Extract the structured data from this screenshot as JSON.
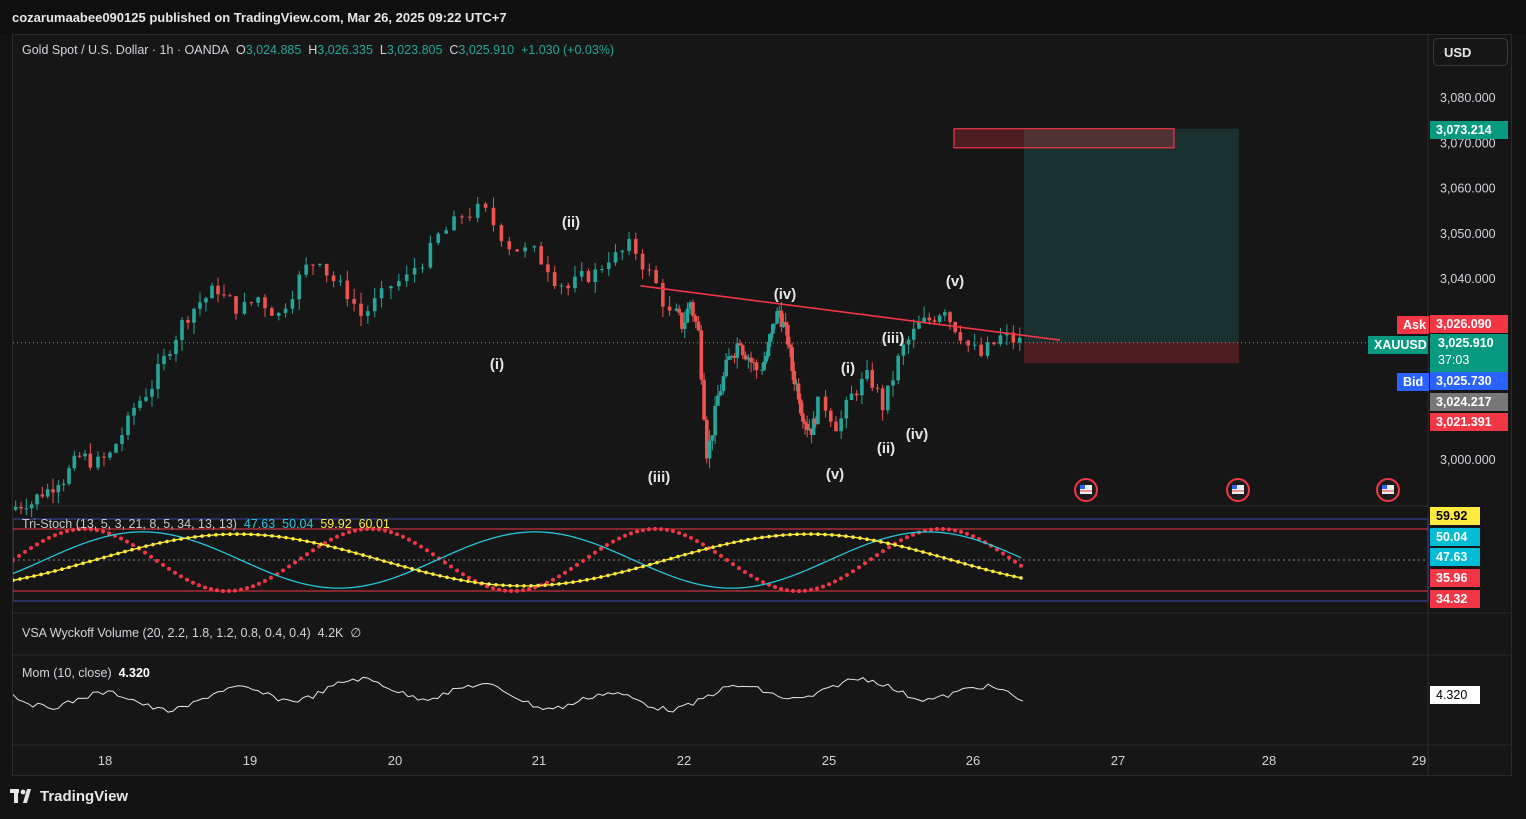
{
  "publisher": "cozarumaabee090125 published on TradingView.com, Mar 26, 2025 09:22 UTC+7",
  "currency_button": "USD",
  "footer_brand": "TradingView",
  "header": {
    "symbol": "Gold Spot / U.S. Dollar · 1h · OANDA",
    "open_label": "O",
    "open": "3,024.885",
    "high_label": "H",
    "high": "3,026.335",
    "low_label": "L",
    "low": "3,023.805",
    "close_label": "C",
    "close": "3,025.910",
    "change": "+1.030 (+0.03%)"
  },
  "price_tags": {
    "target": "3,073.214",
    "ask_label": "Ask",
    "ask": "3,026.090",
    "symbol": "XAUUSD",
    "last": "3,025.910",
    "countdown": "37:03",
    "bid_label": "Bid",
    "bid": "3,025.730",
    "level_gray": "3,024.217",
    "stop": "3,021.391"
  },
  "wave_labels": [
    "(i)",
    "(ii)",
    "(iii)",
    "(iv)",
    "(v)",
    "(i)",
    "(ii)",
    "(iii)",
    "(iv)",
    "(v)"
  ],
  "indicators": {
    "tristoch": {
      "label": "Tri-Stoch (13, 5, 3, 21, 8, 5, 34, 13, 13)",
      "values": [
        "47.63",
        "50.04",
        "59.92",
        "60.01"
      ],
      "tags": [
        "59.92",
        "50.04",
        "47.63",
        "35.96",
        "34.32"
      ]
    },
    "vsa": {
      "label": "VSA Wyckoff Volume (20, 2.2, 1.8, 1.2, 0.8, 0.4, 0.4)",
      "value": "4.2K",
      "extra": "∅"
    },
    "mom": {
      "label": "Mom (10, close)",
      "value": "4.320",
      "tag": "4.320"
    }
  },
  "colors": {
    "up": "#26a69a",
    "down": "#ef5350",
    "trendline": "#f23645",
    "zone_profit": "#26a69a",
    "zone_loss": "#f23645",
    "stoch_fast": "#f23645",
    "stoch_mid": "#26c6da",
    "stoch_slow": "#ffeb3b"
  },
  "chart_data": {
    "type": "candlestick",
    "instrument": "XAUUSD",
    "timeframe": "1h",
    "x_ticks": [
      "18",
      "19",
      "20",
      "21",
      "22",
      "25",
      "26",
      "27",
      "28",
      "29"
    ],
    "y_ticks": [
      "3,000.000",
      "3,040.000",
      "3,050.000",
      "3,060.000",
      "3,070.000",
      "3,080.000"
    ],
    "y_range": [
      2990,
      3085
    ],
    "closes_by_day": {
      "17": [
        2991,
        2993,
        2996,
        2999,
        3000
      ],
      "18": [
        3001,
        3008,
        3015,
        3022,
        3030,
        3035,
        3038,
        3034
      ],
      "19": [
        3036,
        3032,
        3040,
        3045,
        3038,
        3032,
        3036
      ],
      "20": [
        3040,
        3046,
        3052,
        3055,
        3050,
        3046
      ],
      "21": [
        3043,
        3038,
        3041,
        3045,
        3047,
        3041,
        3032
      ],
      "22": [
        3030,
        3035,
        3028,
        3002,
        3010,
        3018,
        3024,
        3027,
        3023,
        3020
      ],
      "24": [
        3023,
        3029,
        3033,
        3028,
        3020,
        3015,
        3009,
        3007,
        3012
      ],
      "25": [
        3008,
        3014,
        3018,
        3012,
        3022,
        3028,
        3031,
        3034,
        3028
      ],
      "26": [
        3023,
        3027,
        3026
      ]
    },
    "trendline": {
      "from": [
        "21.7",
        3038.5
      ],
      "to": [
        "26.6",
        3026.5
      ]
    },
    "position": {
      "entry": 3026.0,
      "target": 3073.214,
      "stop": 3021.4,
      "target_marker": 3069.0
    },
    "waves": [
      {
        "label": "(i)",
        "price": 3021
      },
      {
        "label": "(ii)",
        "price": 3048
      },
      {
        "label": "(iii)",
        "price": 2997
      },
      {
        "label": "(iv)",
        "price": 3033
      },
      {
        "label": "(v)",
        "price": 3001
      },
      {
        "label": "(i)",
        "price": 3018
      },
      {
        "label": "(ii)",
        "price": 3002
      },
      {
        "label": "(iii)",
        "price": 3027
      },
      {
        "label": "(iv)",
        "price": 3005
      },
      {
        "label": "(v)",
        "price": 3036
      }
    ]
  }
}
